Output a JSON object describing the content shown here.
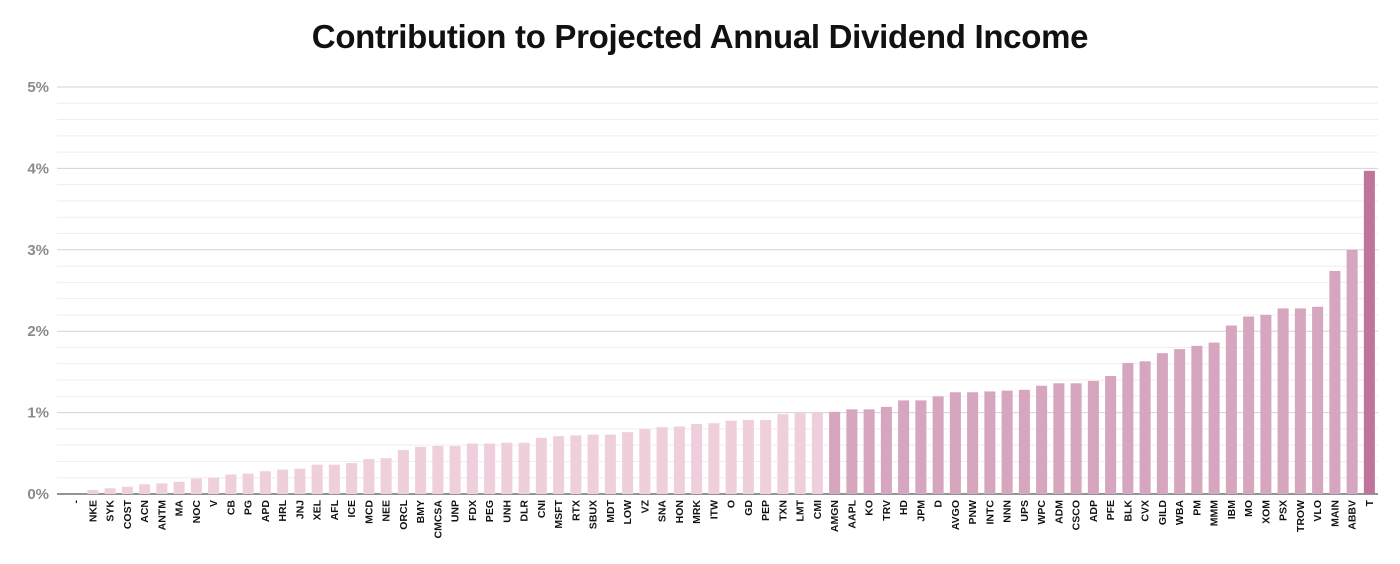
{
  "chart_data": {
    "type": "bar",
    "title": "Contribution to Projected Annual Dividend Income",
    "xlabel": "",
    "ylabel": "",
    "ylim": [
      0,
      5
    ],
    "y_ticks": [
      "0%",
      "1%",
      "2%",
      "3%",
      "4%",
      "5%"
    ],
    "grid": true,
    "minor_grid": true,
    "legend": "none",
    "colors": {
      "light": "#efcfdc",
      "medium": "#d5a6be",
      "dark": "#c0739b",
      "grid_major": "#d2d2d2",
      "grid_minor": "#eeeeee"
    },
    "categories": [
      "-",
      "NKE",
      "SYK",
      "COST",
      "ACN",
      "ANTM",
      "MA",
      "NOC",
      "V",
      "CB",
      "PG",
      "APD",
      "HRL",
      "JNJ",
      "XEL",
      "AFL",
      "ICE",
      "MCD",
      "NEE",
      "ORCL",
      "BMY",
      "CMCSA",
      "UNP",
      "FDX",
      "PEG",
      "UNH",
      "DLR",
      "CNI",
      "MSFT",
      "RTX",
      "SBUX",
      "MDT",
      "LOW",
      "VZ",
      "SNA",
      "HON",
      "MRK",
      "ITW",
      "O",
      "GD",
      "PEP",
      "TXN",
      "LMT",
      "CMI",
      "AMGN",
      "AAPL",
      "KO",
      "TRV",
      "HD",
      "JPM",
      "D",
      "AVGO",
      "PNW",
      "INTC",
      "NNN",
      "UPS",
      "WPC",
      "ADM",
      "CSCO",
      "ADP",
      "PFE",
      "BLK",
      "CVX",
      "GILD",
      "WBA",
      "PM",
      "MMM",
      "IBM",
      "MO",
      "XOM",
      "PSX",
      "TROW",
      "VLO",
      "MAIN",
      "ABBV",
      "T"
    ],
    "values": [
      0.0,
      0.05,
      0.07,
      0.09,
      0.12,
      0.13,
      0.15,
      0.19,
      0.2,
      0.24,
      0.25,
      0.28,
      0.3,
      0.31,
      0.36,
      0.36,
      0.38,
      0.43,
      0.44,
      0.54,
      0.58,
      0.59,
      0.59,
      0.62,
      0.62,
      0.63,
      0.63,
      0.69,
      0.71,
      0.72,
      0.73,
      0.73,
      0.76,
      0.8,
      0.82,
      0.83,
      0.86,
      0.87,
      0.9,
      0.91,
      0.91,
      0.98,
      1.0,
      1.0,
      1.01,
      1.04,
      1.04,
      1.07,
      1.15,
      1.15,
      1.2,
      1.25,
      1.25,
      1.26,
      1.27,
      1.28,
      1.33,
      1.36,
      1.36,
      1.39,
      1.45,
      1.61,
      1.63,
      1.73,
      1.78,
      1.82,
      1.86,
      2.07,
      2.18,
      2.2,
      2.28,
      2.28,
      2.3,
      2.74,
      3.0,
      3.97
    ],
    "bar_shade": [
      "light",
      "light",
      "light",
      "light",
      "light",
      "light",
      "light",
      "light",
      "light",
      "light",
      "light",
      "light",
      "light",
      "light",
      "light",
      "light",
      "light",
      "light",
      "light",
      "light",
      "light",
      "light",
      "light",
      "light",
      "light",
      "light",
      "light",
      "light",
      "light",
      "light",
      "light",
      "light",
      "light",
      "light",
      "light",
      "light",
      "light",
      "light",
      "light",
      "light",
      "light",
      "light",
      "light",
      "light",
      "medium",
      "medium",
      "medium",
      "medium",
      "medium",
      "medium",
      "medium",
      "medium",
      "medium",
      "medium",
      "medium",
      "medium",
      "medium",
      "medium",
      "medium",
      "medium",
      "medium",
      "medium",
      "medium",
      "medium",
      "medium",
      "medium",
      "medium",
      "medium",
      "medium",
      "medium",
      "medium",
      "medium",
      "medium",
      "medium",
      "medium",
      "dark"
    ]
  }
}
